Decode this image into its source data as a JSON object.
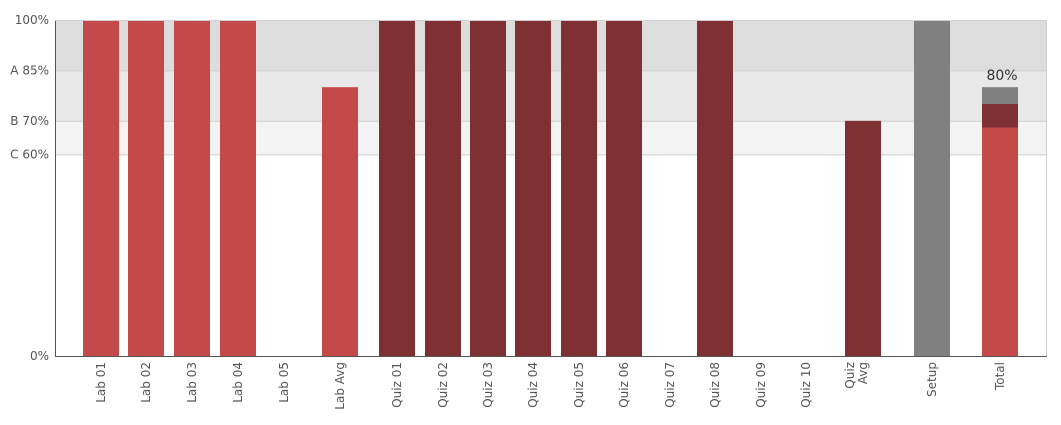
{
  "chart_data": {
    "type": "bar",
    "stacked": true,
    "categories": [
      "Lab 01",
      "Lab 02",
      "Lab 03",
      "Lab 04",
      "Lab 05",
      "Lab Avg",
      "Quiz 01",
      "Quiz 02",
      "Quiz 03",
      "Quiz 04",
      "Quiz 05",
      "Quiz 06",
      "Quiz 07",
      "Quiz 08",
      "Quiz 09",
      "Quiz 10",
      "Quiz Avg",
      "Setup",
      "Total"
    ],
    "category_label_lines": [
      [
        "Lab 01"
      ],
      [
        "Lab 02"
      ],
      [
        "Lab 03"
      ],
      [
        "Lab 04"
      ],
      [
        "Lab 05"
      ],
      [
        "Lab Avg"
      ],
      [
        "Quiz 01"
      ],
      [
        "Quiz 02"
      ],
      [
        "Quiz 03"
      ],
      [
        "Quiz 04"
      ],
      [
        "Quiz 05"
      ],
      [
        "Quiz 06"
      ],
      [
        "Quiz 07"
      ],
      [
        "Quiz 08"
      ],
      [
        "Quiz 09"
      ],
      [
        "Quiz 10"
      ],
      [
        "Quiz",
        "Avg"
      ],
      [
        "Setup"
      ],
      [
        "Total"
      ]
    ],
    "series": [
      {
        "color": "#c44a4a",
        "values": [
          100,
          100,
          100,
          100,
          0,
          80,
          0,
          0,
          0,
          0,
          0,
          0,
          0,
          0,
          0,
          0,
          0,
          0,
          68
        ]
      },
      {
        "color": "#7e3033",
        "values": [
          0,
          0,
          0,
          0,
          0,
          0,
          100,
          100,
          100,
          100,
          100,
          100,
          0,
          100,
          0,
          0,
          70,
          0,
          7
        ]
      },
      {
        "color": "#808080",
        "values": [
          0,
          0,
          0,
          0,
          0,
          0,
          0,
          0,
          0,
          0,
          0,
          0,
          0,
          0,
          0,
          0,
          0,
          100,
          5
        ]
      }
    ],
    "y_ticks": [
      {
        "value": 0,
        "label": "0%"
      },
      {
        "value": 60,
        "label": "C 60%"
      },
      {
        "value": 70,
        "label": "B 70%"
      },
      {
        "value": 85,
        "label": "A 85%"
      },
      {
        "value": 100,
        "label": "100%"
      }
    ],
    "bands": [
      {
        "from": 60,
        "to": 70,
        "color": "#f3f3f3"
      },
      {
        "from": 70,
        "to": 85,
        "color": "#e8e8e8"
      },
      {
        "from": 85,
        "to": 100,
        "color": "#dddddd"
      }
    ],
    "ylim": [
      0,
      100
    ],
    "data_labels": [
      {
        "category": "Total",
        "text": "80%"
      }
    ],
    "grid": true,
    "legend": false,
    "title": "",
    "xlabel": "",
    "ylabel": ""
  }
}
